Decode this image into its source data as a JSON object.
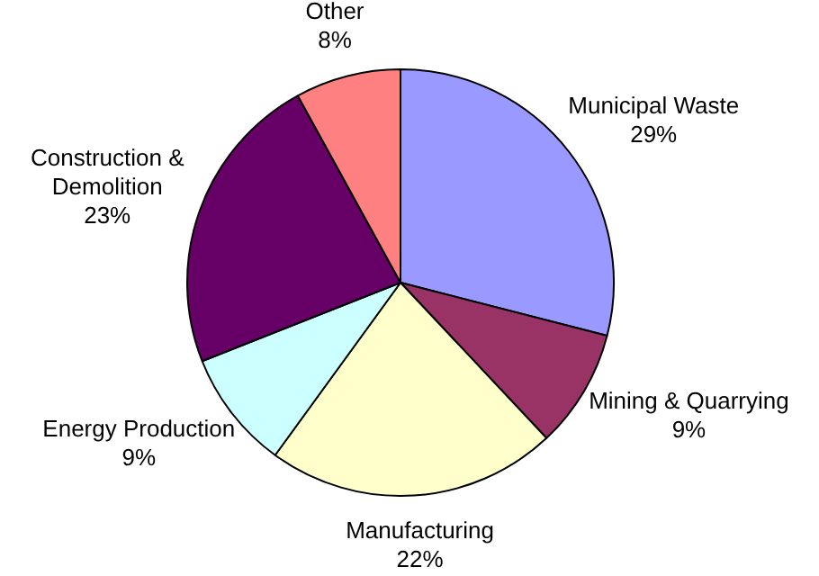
{
  "chart_data": {
    "type": "pie",
    "categories": [
      "Municipal Waste",
      "Mining & Quarrying",
      "Manufacturing",
      "Energy Production",
      "Construction & Demolition",
      "Other"
    ],
    "values": [
      29,
      9,
      22,
      9,
      23,
      8
    ],
    "colors": [
      "#9999ff",
      "#993366",
      "#ffffcc",
      "#ccffff",
      "#660066",
      "#ff8080"
    ],
    "value_labels": [
      "29%",
      "9%",
      "22%",
      "9%",
      "23%",
      "8%"
    ],
    "legend": false
  }
}
